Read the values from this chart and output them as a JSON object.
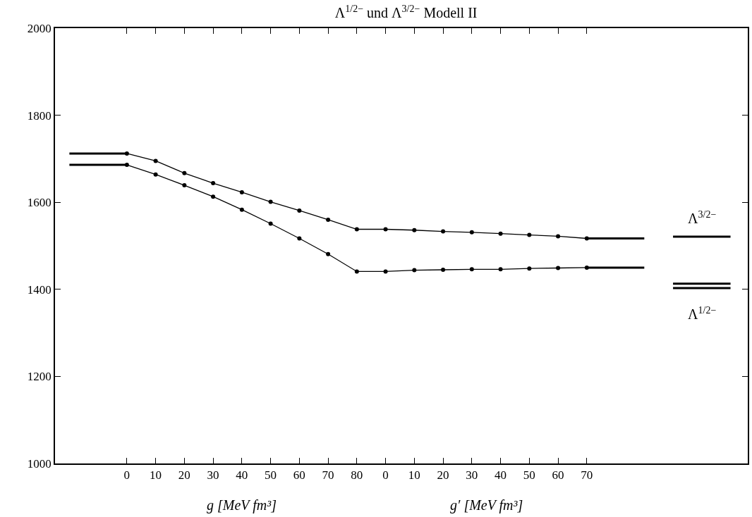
{
  "chart_data": {
    "type": "line",
    "title": "Λ$^{1/2−}$ und Λ$^{3/2−}$ Modell II",
    "categories": [
      null,
      null,
      "0",
      "10",
      "20",
      "30",
      "40",
      "50",
      "60",
      "70",
      "80",
      "0",
      "10",
      "20",
      "30",
      "40",
      "50",
      "60",
      "70",
      null,
      null,
      null,
      null,
      null
    ],
    "ylim": [
      1000,
      2000
    ],
    "yticks": [
      1000,
      1200,
      1400,
      1600,
      1800,
      2000
    ],
    "series": [
      {
        "marker": "circle",
        "color": "#000000",
        "values": [
          null,
          null,
          1712,
          1695,
          1667,
          1644,
          1623,
          1601,
          1581,
          1560,
          1538,
          1538,
          1536,
          1533,
          1531,
          1528,
          1525,
          1522,
          1517,
          null,
          null,
          null,
          null,
          null
        ]
      },
      {
        "marker": "circle",
        "color": "#000000",
        "values": [
          null,
          null,
          1686,
          1664,
          1639,
          1613,
          1583,
          1551,
          1517,
          1481,
          1441,
          1441,
          1444,
          1445,
          1446,
          1446,
          1448,
          1449,
          1450,
          null,
          null,
          null,
          null,
          null
        ]
      },
      {
        "marker": "none",
        "color": "#000000",
        "values": [
          1712,
          null,
          1712,
          null,
          null,
          null,
          null,
          null,
          null,
          null,
          null,
          null,
          null,
          null,
          null,
          null,
          null,
          null,
          null,
          null,
          null,
          null,
          null,
          null
        ]
      },
      {
        "marker": "none",
        "color": "#000000",
        "values": [
          1686,
          null,
          1686,
          null,
          null,
          null,
          null,
          null,
          null,
          null,
          null,
          null,
          null,
          null,
          null,
          null,
          null,
          null,
          null,
          null,
          null,
          null,
          null,
          null
        ]
      },
      {
        "marker": "none",
        "color": "#000000",
        "values": [
          null,
          null,
          null,
          null,
          null,
          null,
          null,
          null,
          null,
          null,
          null,
          null,
          null,
          null,
          null,
          null,
          null,
          null,
          1517,
          null,
          1517,
          null,
          null,
          null
        ]
      },
      {
        "marker": "none",
        "color": "#000000",
        "values": [
          null,
          null,
          null,
          null,
          null,
          null,
          null,
          null,
          null,
          null,
          null,
          null,
          null,
          null,
          null,
          null,
          null,
          null,
          1450,
          null,
          1450,
          null,
          null,
          null
        ]
      },
      {
        "marker": "none",
        "color": "#000000",
        "values": [
          null,
          null,
          null,
          null,
          null,
          null,
          null,
          null,
          null,
          null,
          null,
          null,
          null,
          null,
          null,
          null,
          null,
          null,
          null,
          null,
          null,
          1521,
          null,
          1521
        ]
      },
      {
        "marker": "none",
        "color": "#000000",
        "values": [
          null,
          null,
          null,
          null,
          null,
          null,
          null,
          null,
          null,
          null,
          null,
          null,
          null,
          null,
          null,
          null,
          null,
          null,
          null,
          null,
          null,
          1413,
          null,
          1413
        ]
      },
      {
        "marker": "none",
        "color": "#000000",
        "values": [
          null,
          null,
          null,
          null,
          null,
          null,
          null,
          null,
          null,
          null,
          null,
          null,
          null,
          null,
          null,
          null,
          null,
          null,
          null,
          null,
          null,
          1403,
          null,
          1403
        ]
      }
    ],
    "annotations": [
      "Λ$^{3/2−}$",
      "Λ$^{1/2−}$",
      "g [MeV fm³]",
      "g′ [MeV fm³]"
    ]
  }
}
